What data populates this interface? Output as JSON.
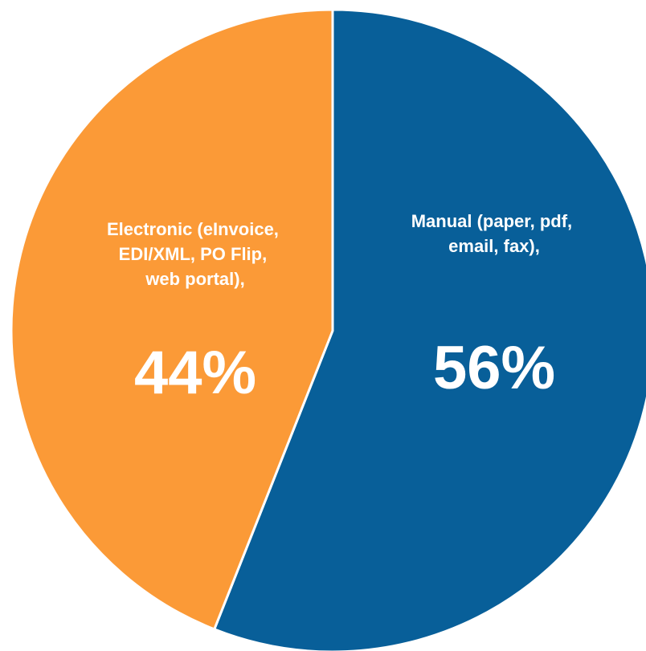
{
  "chart_data": {
    "type": "pie",
    "title": "",
    "slices": [
      {
        "label_lines": [
          "Manual (paper, pdf,",
          "email, fax),"
        ],
        "value": 56,
        "value_label": "56%",
        "color": "#085F99"
      },
      {
        "label_lines": [
          "Electronic (eInvoice,",
          "EDI/XML, PO Flip,",
          "web portal),"
        ],
        "value": 44,
        "value_label": "44%",
        "color": "#FB9A37"
      }
    ],
    "start_angle_deg": 0,
    "direction": "clockwise",
    "slice_border_color": "#ffffff"
  }
}
